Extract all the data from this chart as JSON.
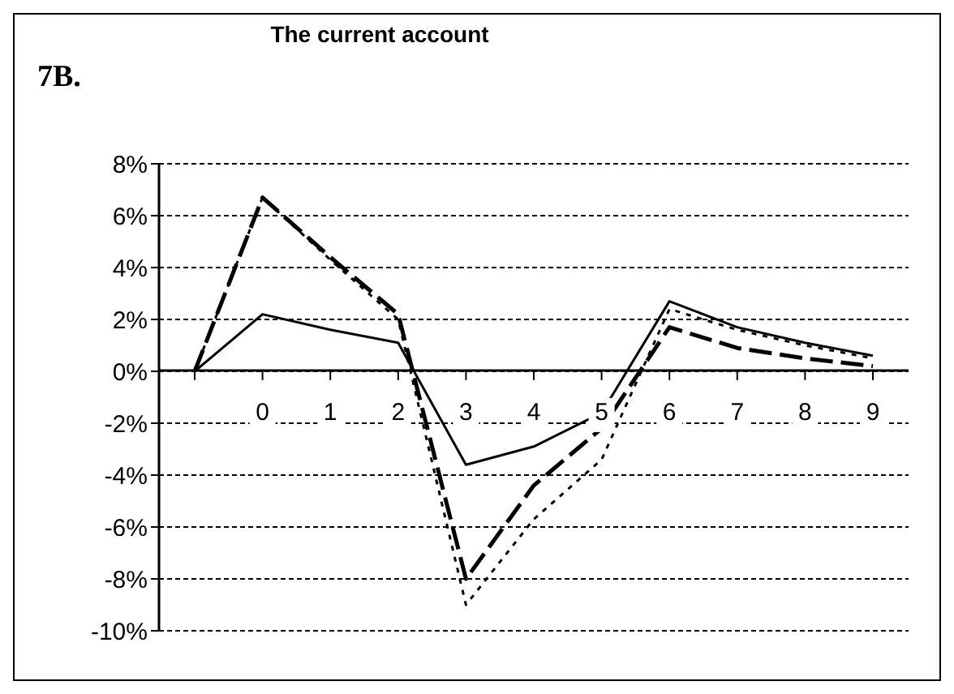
{
  "chart_data": {
    "type": "line",
    "title": "The current account",
    "annotations": [
      "7B."
    ],
    "categories": [
      null,
      "0",
      "1",
      "2",
      "3",
      "4",
      "5",
      "6",
      "7",
      "8",
      "9"
    ],
    "series": [
      {
        "color": "#000000",
        "line_style": "solid",
        "values": [
          0,
          2.2,
          1.6,
          1.1,
          -3.6,
          -2.9,
          -1.6,
          2.7,
          1.7,
          1.1,
          0.6
        ]
      },
      {
        "color": "#000000",
        "line_style": "dashed",
        "values": [
          0,
          6.7,
          4.4,
          2.2,
          -8.0,
          -4.4,
          -2.2,
          1.7,
          0.9,
          0.5,
          0.2
        ]
      },
      {
        "color": "#000000",
        "line_style": "dotted",
        "values": [
          0,
          6.7,
          4.3,
          2.0,
          -9.0,
          -5.7,
          -3.4,
          2.4,
          1.6,
          1.0,
          0.5
        ]
      }
    ],
    "ylim": [
      -10,
      8
    ],
    "yticks": [
      {
        "value": -10,
        "label": "-10%"
      },
      {
        "value": -8,
        "label": "-8%"
      },
      {
        "value": -6,
        "label": "-6%"
      },
      {
        "value": -4,
        "label": "-4%"
      },
      {
        "value": -2,
        "label": "-2%"
      },
      {
        "value": 0,
        "label": "0%"
      },
      {
        "value": 2,
        "label": "2%"
      },
      {
        "value": 4,
        "label": "4%"
      },
      {
        "value": 6,
        "label": "6%"
      },
      {
        "value": 8,
        "label": "8%"
      }
    ],
    "grid": "y",
    "marker": "none",
    "legend": false
  }
}
